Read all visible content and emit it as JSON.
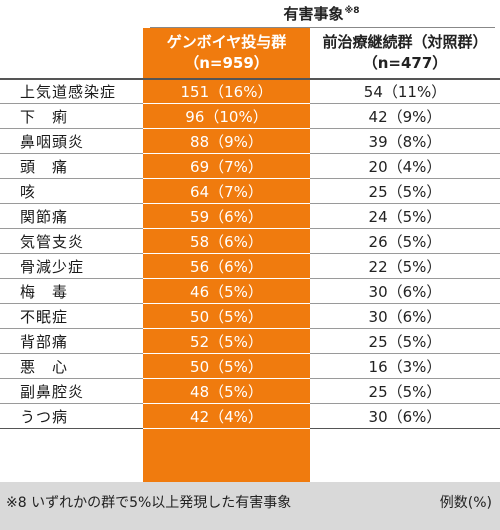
{
  "header": {
    "title": "有害事象",
    "title_note": "※8",
    "group_a": {
      "name": "ゲンボイヤ投与群",
      "n": "（n=959）"
    },
    "group_b": {
      "name": "前治療継続群（対照群）",
      "n": "（n=477）"
    }
  },
  "rows": [
    {
      "event": "上気道感染症",
      "a": "151（16%）",
      "b": "54（11%）"
    },
    {
      "event": "下　痢",
      "a": "96（10%）",
      "b": "42（9%）"
    },
    {
      "event": "鼻咽頭炎",
      "a": "88（9%）",
      "b": "39（8%）"
    },
    {
      "event": "頭　痛",
      "a": "69（7%）",
      "b": "20（4%）"
    },
    {
      "event": "咳",
      "a": "64（7%）",
      "b": "25（5%）"
    },
    {
      "event": "関節痛",
      "a": "59（6%）",
      "b": "24（5%）"
    },
    {
      "event": "気管支炎",
      "a": "58（6%）",
      "b": "26（5%）"
    },
    {
      "event": "骨減少症",
      "a": "56（6%）",
      "b": "22（5%）"
    },
    {
      "event": "梅　毒",
      "a": "46（5%）",
      "b": "30（6%）"
    },
    {
      "event": "不眠症",
      "a": "50（5%）",
      "b": "30（6%）"
    },
    {
      "event": "背部痛",
      "a": "52（5%）",
      "b": "25（5%）"
    },
    {
      "event": "悪　心",
      "a": "50（5%）",
      "b": "16（3%）"
    },
    {
      "event": "副鼻腔炎",
      "a": "48（5%）",
      "b": "25（5%）"
    },
    {
      "event": "うつ病",
      "a": "42（4%）",
      "b": "30（6%）"
    }
  ],
  "footer": {
    "note": "※8 いずれかの群で5%以上発現した有害事象",
    "unit": "例数(%)"
  },
  "colors": {
    "accent": "#F07B0E",
    "footer_bg": "#d9d9d9"
  }
}
